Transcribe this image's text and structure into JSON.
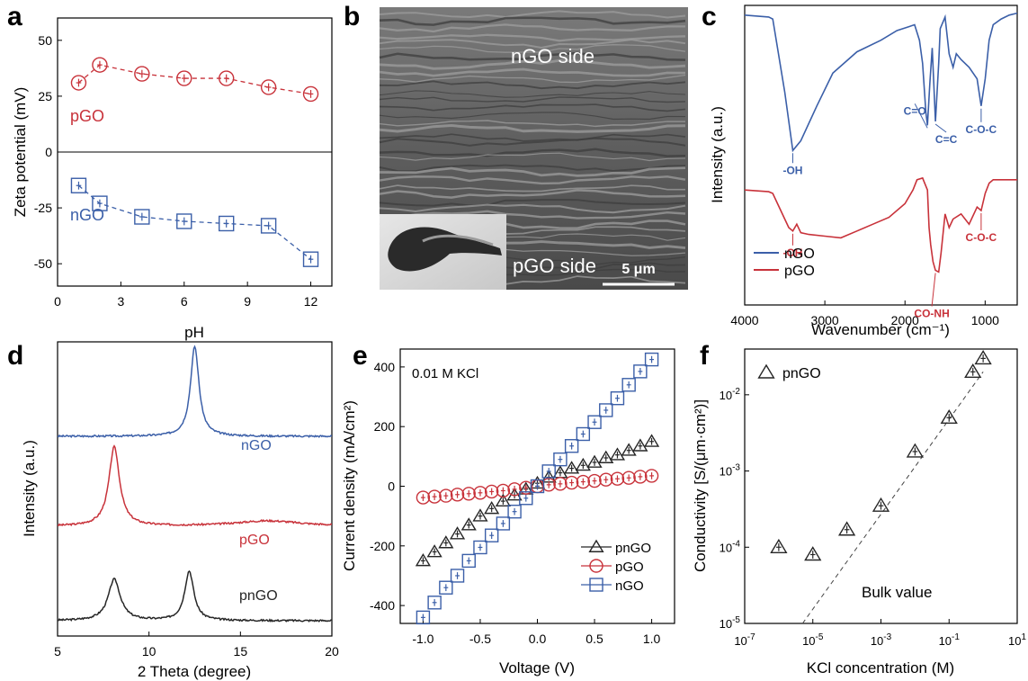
{
  "figure": {
    "panel_letters": [
      "a",
      "b",
      "c",
      "d",
      "e",
      "f"
    ]
  },
  "colors": {
    "pgo": "#c8323a",
    "ngo": "#3b5fa8",
    "pngo": "#262626",
    "axis": "#000000"
  },
  "chart_data": [
    {
      "panel": "a",
      "type": "scatter",
      "xlabel": "pH",
      "ylabel": "Zeta potential (mV)",
      "xlim": [
        0,
        13
      ],
      "ylim": [
        -60,
        60
      ],
      "xticks": [
        "0",
        "3",
        "6",
        "9",
        "12"
      ],
      "yticks": [
        "-50",
        "-25",
        "0",
        "25",
        "50"
      ],
      "zero_line": true,
      "series": [
        {
          "name": "pGO",
          "marker": "circle",
          "color": "#c8323a",
          "x": [
            1,
            2,
            4,
            6,
            8,
            10,
            12
          ],
          "y": [
            31,
            39,
            35,
            33,
            33,
            29,
            26
          ]
        },
        {
          "name": "nGO",
          "marker": "square",
          "color": "#3b5fa8",
          "x": [
            1,
            2,
            4,
            6,
            8,
            10,
            12
          ],
          "y": [
            -15,
            -23,
            -29,
            -31,
            -32,
            -33,
            -48
          ]
        }
      ]
    },
    {
      "panel": "b",
      "type": "image",
      "labels": {
        "top": "nGO side",
        "bottom": "pGO side",
        "scale": "5 μm"
      }
    },
    {
      "panel": "c",
      "type": "line",
      "xlabel": "Wavenumber (cm⁻¹)",
      "ylabel": "Intensity (a.u.)",
      "xlim": [
        4000,
        600
      ],
      "xticks": [
        "4000",
        "3000",
        "2000",
        "1000"
      ],
      "legend_position": "bottom-left",
      "series": [
        {
          "name": "nGO",
          "color": "#3b5fa8",
          "x": [
            4000,
            3700,
            3650,
            3500,
            3400,
            3300,
            3100,
            2900,
            2600,
            2300,
            2100,
            1950,
            1880,
            1820,
            1780,
            1740,
            1720,
            1690,
            1660,
            1620,
            1580,
            1560,
            1500,
            1450,
            1400,
            1360,
            1300,
            1200,
            1100,
            1050,
            1000,
            950,
            900,
            800,
            700,
            600
          ],
          "y": [
            95,
            94,
            93,
            55,
            25,
            30,
            48,
            65,
            76,
            82,
            87,
            89,
            90,
            82,
            70,
            45,
            38,
            60,
            78,
            40,
            70,
            88,
            94,
            75,
            68,
            75,
            72,
            68,
            62,
            48,
            62,
            82,
            90,
            93,
            95,
            96
          ]
        },
        {
          "name": "pGO",
          "color": "#c8323a",
          "x": [
            4000,
            3700,
            3650,
            3550,
            3450,
            3400,
            3350,
            3300,
            3200,
            3000,
            2800,
            2600,
            2400,
            2200,
            2000,
            1900,
            1850,
            1780,
            1720,
            1700,
            1680,
            1650,
            1620,
            1580,
            1550,
            1500,
            1450,
            1400,
            1300,
            1200,
            1100,
            1050,
            1000,
            950,
            900,
            800,
            700,
            600
          ],
          "y": [
            52,
            51,
            50,
            40,
            30,
            28,
            32,
            27,
            26,
            25,
            24,
            28,
            32,
            36,
            44,
            52,
            58,
            59,
            52,
            30,
            20,
            10,
            5,
            4,
            15,
            38,
            30,
            35,
            38,
            32,
            42,
            40,
            50,
            56,
            58,
            58,
            58,
            58
          ]
        }
      ],
      "annotations": [
        {
          "text": "-OH",
          "series": "nGO",
          "x": 3400
        },
        {
          "text": "C=O",
          "series": "nGO",
          "x": 1720
        },
        {
          "text": "C=C",
          "series": "nGO",
          "x": 1620
        },
        {
          "text": "C-O-C",
          "series": "nGO",
          "x": 1050
        },
        {
          "text": "-OH",
          "series": "pGO",
          "x": 3400
        },
        {
          "text": "CO-NH",
          "series": "pGO",
          "x": 1620
        },
        {
          "text": "C-O-C",
          "series": "pGO",
          "x": 1050
        }
      ]
    },
    {
      "panel": "d",
      "type": "line",
      "xlabel": "2 Theta (degree)",
      "ylabel": "Intensity (a.u.)",
      "xlim": [
        5,
        20
      ],
      "xticks": [
        "5",
        "10",
        "15",
        "20"
      ],
      "series": [
        {
          "name": "nGO",
          "color": "#3b5fa8",
          "peaks": [
            {
              "x": 12.5,
              "height": 1.0,
              "width": 0.28
            }
          ],
          "offset": 2.05
        },
        {
          "name": "pGO",
          "color": "#c8323a",
          "peaks": [
            {
              "x": 8.1,
              "height": 0.88,
              "width": 0.35
            },
            {
              "x": 16.5,
              "height": 0.06,
              "width": 2.2
            }
          ],
          "offset": 1.05
        },
        {
          "name": "pnGO",
          "color": "#262626",
          "peaks": [
            {
              "x": 8.1,
              "height": 0.46,
              "width": 0.4
            },
            {
              "x": 12.2,
              "height": 0.55,
              "width": 0.3
            }
          ],
          "offset": 0.0
        }
      ]
    },
    {
      "panel": "e",
      "type": "scatter",
      "title": "0.01 M KCl",
      "xlabel": "Voltage (V)",
      "ylabel": "Current density (mA/cm²)",
      "xlim": [
        -1.2,
        1.2
      ],
      "ylim": [
        -460,
        460
      ],
      "xticks": [
        "-1.0",
        "-0.5",
        "0.0",
        "0.5",
        "1.0"
      ],
      "yticks": [
        "-400",
        "-200",
        "0",
        "200",
        "400"
      ],
      "legend_position": "bottom-right",
      "x": [
        -1.0,
        -0.9,
        -0.8,
        -0.7,
        -0.6,
        -0.5,
        -0.4,
        -0.3,
        -0.2,
        -0.1,
        0.0,
        0.1,
        0.2,
        0.3,
        0.4,
        0.5,
        0.6,
        0.7,
        0.8,
        0.9,
        1.0
      ],
      "series": [
        {
          "name": "pnGO",
          "marker": "triangle",
          "color": "#262626",
          "y": [
            -250,
            -220,
            -190,
            -160,
            -130,
            -100,
            -75,
            -50,
            -30,
            -10,
            10,
            30,
            45,
            60,
            70,
            80,
            95,
            105,
            120,
            135,
            150
          ]
        },
        {
          "name": "pGO",
          "marker": "circle",
          "color": "#c8323a",
          "y": [
            -38,
            -35,
            -32,
            -28,
            -25,
            -22,
            -18,
            -15,
            -10,
            -5,
            0,
            5,
            8,
            12,
            15,
            18,
            22,
            25,
            28,
            32,
            35
          ]
        },
        {
          "name": "nGO",
          "marker": "square",
          "color": "#3b5fa8",
          "y": [
            -440,
            -390,
            -340,
            -300,
            -250,
            -205,
            -165,
            -125,
            -85,
            -40,
            0,
            50,
            90,
            135,
            175,
            215,
            255,
            295,
            340,
            385,
            425
          ]
        }
      ]
    },
    {
      "panel": "f",
      "type": "scatter",
      "xlabel": "KCl concentration (M)",
      "ylabel": "Conductivity [S/(μm·cm²)]",
      "log_x": true,
      "log_y": true,
      "xlim_exp": [
        -7,
        1
      ],
      "ylim_exp": [
        -5,
        -1.4
      ],
      "xtick_exponents": [
        "-7",
        "-5",
        "-3",
        "-1",
        "1"
      ],
      "ytick_exponents": [
        "-5",
        "-4",
        "-3",
        "-2"
      ],
      "legend_position": "top-left",
      "series": [
        {
          "name": "pnGO",
          "marker": "triangle",
          "color": "#262626",
          "x": [
            1e-06,
            1e-05,
            0.0001,
            0.001,
            0.01,
            0.1,
            0.5,
            1.0
          ],
          "y": [
            0.0001,
            8e-05,
            0.00017,
            0.00035,
            0.0018,
            0.005,
            0.02,
            0.03
          ]
        }
      ],
      "reference_line": {
        "label": "Bulk value",
        "x": [
          5e-06,
          1.0
        ],
        "y": [
          1e-05,
          0.02
        ]
      }
    }
  ]
}
